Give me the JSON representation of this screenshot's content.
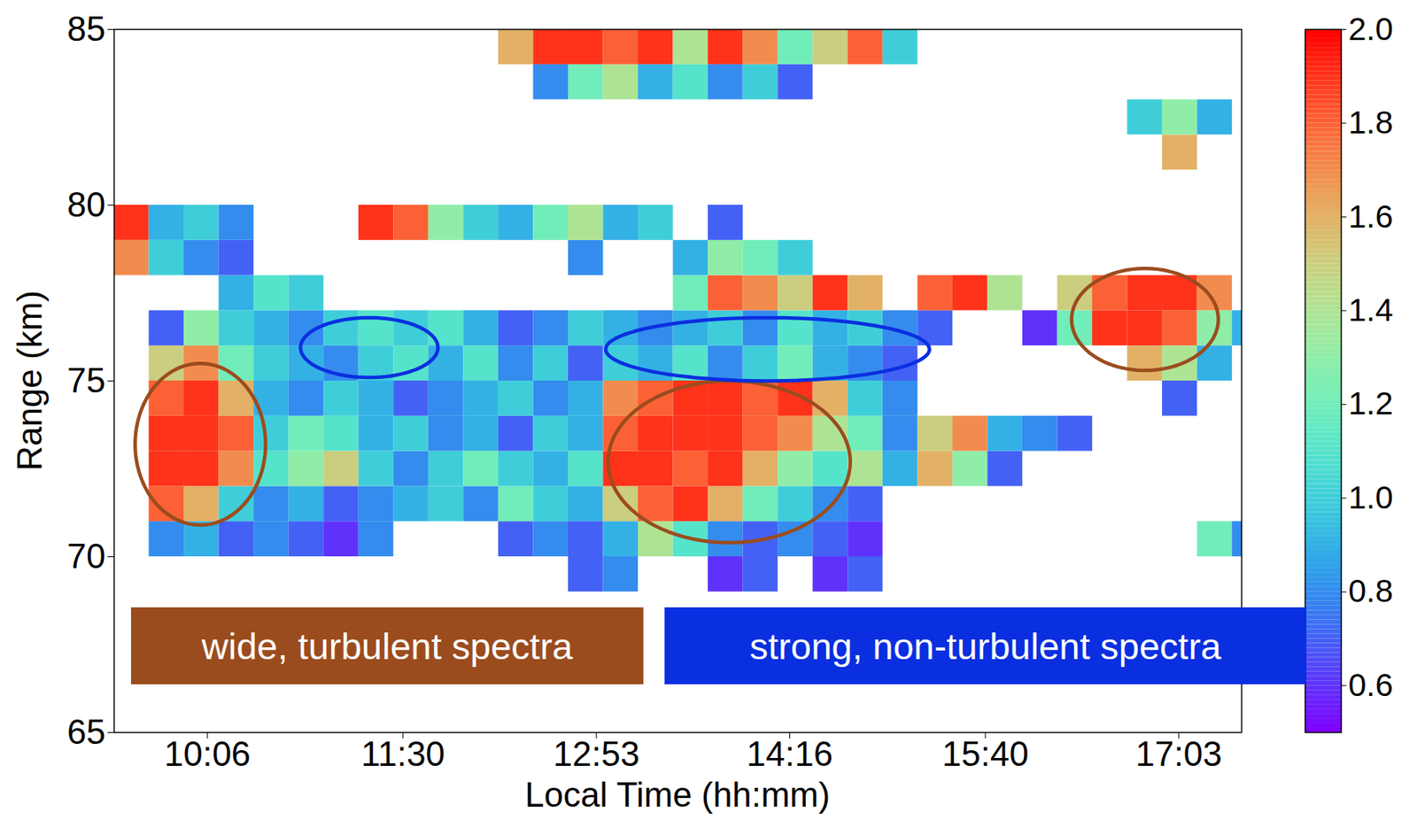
{
  "chart_data": {
    "type": "heatmap",
    "xlabel": "Local Time (hh:mm)",
    "ylabel": "Range (km)",
    "xlim": [
      566,
      1050
    ],
    "xticks": [
      {
        "value": 606,
        "label": "10:06"
      },
      {
        "value": 690,
        "label": "11:30"
      },
      {
        "value": 773,
        "label": "12:53"
      },
      {
        "value": 856,
        "label": "14:16"
      },
      {
        "value": 940,
        "label": "15:40"
      },
      {
        "value": 1023,
        "label": "17:03"
      }
    ],
    "ylim": [
      65,
      85
    ],
    "yticks": [
      65,
      70,
      75,
      80,
      85
    ],
    "colorbar": {
      "range": [
        0.5,
        2.0
      ],
      "ticks": [
        0.6,
        0.8,
        {
          "value": 1,
          "label": "1.0"
        },
        1.2,
        1.4,
        1.6,
        1.8,
        {
          "value": 2,
          "label": "2.0"
        }
      ]
    },
    "cells": {
      "x_edges": [
        566,
        581,
        596,
        611,
        626,
        641,
        656,
        671,
        686,
        701,
        716,
        731,
        746,
        761,
        776,
        791,
        806,
        821,
        836,
        851,
        866,
        881,
        896,
        911,
        926,
        941,
        956,
        971,
        986,
        1001,
        1016,
        1031,
        1046,
        1061
      ],
      "y_edges": [
        65,
        66,
        67,
        68,
        69,
        70,
        71,
        72,
        73,
        74,
        75,
        76,
        77,
        78,
        79,
        80,
        81,
        82,
        83,
        84,
        85
      ],
      "values": [
        [
          null,
          null,
          null,
          null,
          null,
          null,
          null,
          null,
          null,
          null,
          null,
          null,
          null,
          null,
          null,
          null,
          null,
          null,
          null,
          null,
          null,
          null,
          null,
          null,
          null,
          null,
          null,
          null,
          null,
          null,
          null,
          null,
          null
        ],
        [
          null,
          null,
          null,
          null,
          null,
          null,
          null,
          null,
          null,
          null,
          null,
          null,
          null,
          null,
          null,
          null,
          null,
          null,
          null,
          null,
          null,
          null,
          null,
          null,
          null,
          null,
          null,
          null,
          null,
          null,
          null,
          null,
          null
        ],
        [
          null,
          null,
          null,
          null,
          null,
          null,
          null,
          null,
          null,
          null,
          null,
          null,
          null,
          null,
          null,
          null,
          null,
          null,
          null,
          null,
          null,
          null,
          null,
          null,
          null,
          null,
          null,
          null,
          null,
          null,
          null,
          null,
          null
        ],
        [
          null,
          null,
          null,
          null,
          null,
          null,
          null,
          null,
          null,
          null,
          null,
          null,
          null,
          null,
          null,
          null,
          null,
          null,
          null,
          null,
          null,
          null,
          null,
          null,
          null,
          null,
          null,
          null,
          null,
          null,
          null,
          null,
          null
        ],
        [
          null,
          null,
          null,
          null,
          null,
          null,
          null,
          null,
          null,
          null,
          null,
          null,
          null,
          0.7,
          0.8,
          null,
          null,
          0.6,
          0.7,
          null,
          0.6,
          0.7,
          null,
          null,
          null,
          null,
          null,
          null,
          null,
          null,
          null,
          null,
          null
        ],
        [
          null,
          0.8,
          0.9,
          0.7,
          0.8,
          0.7,
          0.6,
          0.8,
          null,
          null,
          null,
          0.7,
          0.8,
          0.7,
          0.9,
          1.4,
          1.1,
          0.8,
          0.7,
          0.8,
          0.7,
          0.6,
          null,
          null,
          null,
          null,
          null,
          null,
          null,
          null,
          null,
          1.2,
          0.8
        ],
        [
          null,
          1.8,
          1.6,
          1.0,
          0.8,
          0.9,
          0.7,
          0.8,
          0.9,
          1.0,
          0.8,
          1.2,
          1.0,
          0.9,
          1.5,
          1.8,
          1.9,
          1.6,
          1.2,
          1.0,
          0.8,
          0.7,
          null,
          null,
          null,
          null,
          null,
          null,
          null,
          null,
          null,
          null,
          null
        ],
        [
          null,
          1.9,
          1.9,
          1.7,
          1.1,
          1.3,
          1.5,
          1.0,
          0.8,
          1.0,
          1.2,
          1.0,
          0.9,
          1.1,
          1.9,
          1.9,
          1.8,
          1.9,
          1.6,
          1.3,
          1.1,
          1.4,
          0.9,
          1.6,
          1.3,
          0.7,
          null,
          null,
          null,
          null,
          null,
          null,
          null
        ],
        [
          null,
          1.9,
          1.9,
          1.8,
          1.0,
          1.2,
          1.1,
          0.9,
          1.0,
          0.8,
          0.9,
          0.7,
          1.0,
          0.9,
          1.8,
          1.9,
          1.9,
          1.9,
          1.8,
          1.7,
          1.4,
          1.2,
          0.8,
          1.5,
          1.7,
          0.9,
          0.8,
          0.7,
          null,
          null,
          null,
          null,
          null
        ],
        [
          null,
          1.8,
          1.9,
          1.6,
          0.9,
          0.8,
          1.0,
          0.9,
          0.7,
          0.8,
          0.9,
          1.0,
          0.8,
          0.9,
          1.7,
          1.8,
          1.9,
          1.9,
          1.8,
          1.9,
          1.6,
          1.0,
          0.8,
          null,
          null,
          null,
          null,
          null,
          null,
          null,
          0.7,
          null,
          null
        ],
        [
          null,
          1.5,
          1.7,
          1.2,
          1.0,
          0.9,
          0.8,
          1.0,
          1.1,
          0.9,
          1.1,
          0.8,
          1.0,
          0.7,
          1.0,
          0.9,
          1.1,
          0.8,
          1.0,
          1.2,
          0.9,
          0.8,
          0.7,
          null,
          null,
          null,
          null,
          null,
          null,
          1.6,
          1.4,
          0.9,
          null
        ],
        [
          null,
          0.7,
          1.3,
          1.0,
          0.9,
          0.8,
          1.0,
          1.1,
          1.0,
          1.1,
          0.9,
          0.7,
          0.8,
          1.0,
          0.9,
          0.8,
          0.9,
          1.0,
          0.8,
          1.1,
          0.9,
          1.0,
          0.8,
          0.7,
          null,
          null,
          0.6,
          1.2,
          1.9,
          1.9,
          1.8,
          1.3,
          0.9
        ],
        [
          null,
          null,
          null,
          0.9,
          1.1,
          1.0,
          null,
          null,
          null,
          null,
          null,
          null,
          null,
          null,
          null,
          null,
          1.2,
          1.8,
          1.7,
          1.5,
          1.9,
          1.6,
          null,
          1.8,
          1.9,
          1.4,
          null,
          1.5,
          1.8,
          1.9,
          1.9,
          1.7,
          null
        ],
        [
          1.7,
          1.0,
          0.8,
          0.7,
          null,
          null,
          null,
          null,
          null,
          null,
          null,
          null,
          null,
          0.8,
          null,
          null,
          0.9,
          1.3,
          1.2,
          1.0,
          null,
          null,
          null,
          null,
          null,
          null,
          null,
          null,
          null,
          null,
          null,
          null,
          null
        ],
        [
          1.9,
          0.9,
          1.0,
          0.8,
          null,
          null,
          null,
          1.9,
          1.8,
          1.3,
          1.0,
          0.9,
          1.2,
          1.4,
          0.9,
          1.0,
          null,
          0.7,
          null,
          null,
          null,
          null,
          null,
          null,
          null,
          null,
          null,
          null,
          null,
          null,
          null,
          null,
          null
        ],
        [
          null,
          null,
          null,
          null,
          null,
          null,
          null,
          null,
          null,
          null,
          null,
          null,
          null,
          null,
          null,
          null,
          null,
          null,
          null,
          null,
          null,
          null,
          null,
          null,
          null,
          null,
          null,
          null,
          null,
          null,
          null,
          null,
          null
        ],
        [
          null,
          null,
          null,
          null,
          null,
          null,
          null,
          null,
          null,
          null,
          null,
          null,
          null,
          null,
          null,
          null,
          null,
          null,
          null,
          null,
          null,
          null,
          null,
          null,
          null,
          null,
          null,
          null,
          null,
          null,
          1.6,
          null,
          null
        ],
        [
          null,
          null,
          null,
          null,
          null,
          null,
          null,
          null,
          null,
          null,
          null,
          null,
          null,
          null,
          null,
          null,
          null,
          null,
          null,
          null,
          null,
          null,
          null,
          null,
          null,
          null,
          null,
          null,
          null,
          1.0,
          1.3,
          0.9,
          null
        ],
        [
          null,
          null,
          null,
          null,
          null,
          null,
          null,
          null,
          null,
          null,
          null,
          null,
          0.8,
          1.2,
          1.4,
          0.9,
          1.1,
          0.8,
          1.0,
          0.7,
          null,
          null,
          null,
          null,
          null,
          null,
          null,
          null,
          null,
          null,
          null,
          null,
          null
        ],
        [
          null,
          null,
          null,
          null,
          null,
          null,
          null,
          null,
          null,
          null,
          null,
          1.6,
          1.9,
          1.9,
          1.8,
          1.9,
          1.4,
          1.9,
          1.7,
          1.2,
          1.5,
          1.8,
          1.0,
          null,
          null,
          null,
          null,
          null,
          null,
          null,
          null,
          null,
          null
        ]
      ]
    },
    "annotations": [
      {
        "text": "wide, turbulent spectra",
        "color": "#9b4c1e",
        "regions": [
          {
            "x": [
              575,
              631
            ],
            "y": [
              70.9,
              75.5
            ]
          },
          {
            "x": [
              778,
              882
            ],
            "y": [
              70.4,
              75.0
            ]
          },
          {
            "x": [
              977,
              1040
            ],
            "y": [
              75.3,
              78.2
            ]
          }
        ]
      },
      {
        "text": "strong, non-turbulent spectra",
        "color": "#0a2fe0",
        "regions": [
          {
            "x": [
              646,
              705
            ],
            "y": [
              75.1,
              76.8
            ]
          },
          {
            "x": [
              777,
              916
            ],
            "y": [
              75.0,
              76.8
            ]
          }
        ]
      }
    ]
  }
}
